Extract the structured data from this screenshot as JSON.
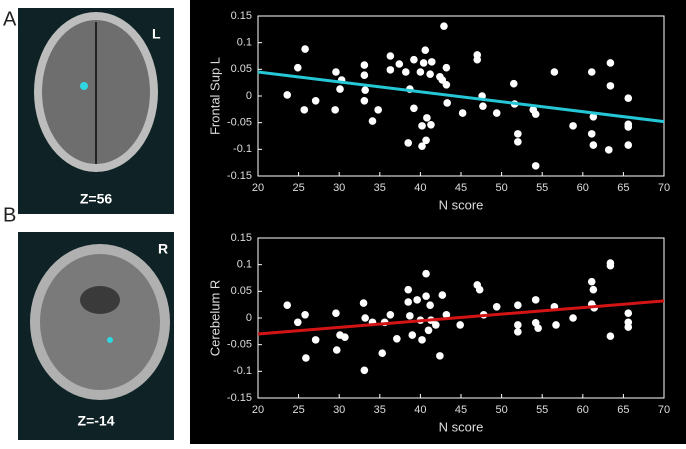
{
  "panels": [
    {
      "letter": "A",
      "side": "L",
      "slice": "Z=56"
    },
    {
      "letter": "B",
      "side": "R",
      "slice": "Z=-14"
    }
  ],
  "chart_data": [
    {
      "type": "scatter",
      "x_label": "N score",
      "y_label": "Frontal Sup L",
      "xlim": [
        20,
        70
      ],
      "xticks": [
        20,
        25,
        30,
        35,
        40,
        45,
        50,
        55,
        60,
        65,
        70
      ],
      "ylim": [
        -0.15,
        0.15
      ],
      "yticks": [
        0.15,
        0.1,
        0.05,
        0,
        -0.05,
        -0.1,
        -0.15
      ],
      "color": "#ffffff",
      "x": [
        23.6,
        24.9,
        25.8,
        25.7,
        27.1,
        29.6,
        30.1,
        30.3,
        29.5,
        33.1,
        33.1,
        33.2,
        33.1,
        34.1,
        34.8,
        36.3,
        36.3,
        37.4,
        38.2,
        38.5,
        38.7,
        39.2,
        39.2,
        40.0,
        40.2,
        40.2,
        40.4,
        40.6,
        40.8,
        40.7,
        41.2,
        41.3,
        41.4,
        42.4,
        42.7,
        42.9,
        43.2,
        43.2,
        43.3,
        45.2,
        47.0,
        47.0,
        47.6,
        47.7,
        49.4,
        51.5,
        51.6,
        52.0,
        52.0,
        53.9,
        54.2,
        54.2,
        56.5,
        58.8,
        61.1,
        61.3,
        61.1,
        61.3,
        63.4,
        63.4,
        63.2,
        65.6,
        65.6,
        65.6,
        65.6
      ],
      "values": [
        0.002,
        0.053,
        0.088,
        -0.026,
        -0.009,
        0.045,
        0.013,
        0.03,
        -0.026,
        0.058,
        0.039,
        0.011,
        -0.009,
        -0.047,
        -0.026,
        0.075,
        0.049,
        0.06,
        0.045,
        -0.088,
        0.013,
        -0.023,
        0.068,
        0.045,
        -0.094,
        -0.056,
        0.062,
        0.086,
        -0.041,
        -0.083,
        0.041,
        -0.054,
        0.064,
        0.036,
        0.03,
        0.131,
        0.053,
        0.021,
        -0.013,
        -0.032,
        0.077,
        0.068,
        0,
        -0.019,
        -0.032,
        0.023,
        -0.015,
        -0.071,
        -0.086,
        -0.026,
        -0.131,
        -0.034,
        0.045,
        -0.056,
        0.045,
        -0.039,
        -0.071,
        -0.092,
        0.062,
        0.019,
        -0.101,
        -0.004,
        -0.053,
        -0.058,
        -0.092
      ],
      "trend_line": {
        "x": [
          20,
          70
        ],
        "values": [
          0.045,
          -0.048
        ],
        "color": "#25c6d6"
      }
    },
    {
      "type": "scatter",
      "x_label": "N score",
      "y_label": "Cerebelum R",
      "xlim": [
        20,
        70
      ],
      "xticks": [
        20,
        25,
        30,
        35,
        40,
        45,
        50,
        55,
        60,
        65,
        70
      ],
      "ylim": [
        -0.15,
        0.15
      ],
      "yticks": [
        0.15,
        0.1,
        0.05,
        0,
        -0.05,
        -0.1,
        -0.15
      ],
      "color": "#ffffff",
      "x": [
        23.6,
        24.9,
        25.8,
        25.9,
        27.1,
        29.6,
        29.7,
        30.1,
        30.7,
        33.0,
        33.2,
        33.1,
        34.1,
        35.3,
        35.6,
        36.3,
        37.1,
        38.5,
        38.5,
        39.0,
        38.7,
        39.6,
        40.0,
        40.2,
        40.7,
        40.7,
        41.0,
        41.2,
        41.3,
        41.9,
        42.4,
        42.7,
        43.2,
        44.9,
        47.0,
        47.3,
        47.8,
        49.4,
        52.0,
        52.0,
        52.0,
        54.2,
        54.2,
        54.5,
        56.5,
        56.7,
        58.8,
        61.1,
        61.3,
        61.1,
        61.4,
        63.4,
        63.4,
        63.4,
        65.6,
        65.6,
        65.6
      ],
      "values": [
        0.024,
        -0.008,
        0.006,
        -0.075,
        -0.041,
        0.009,
        -0.06,
        -0.032,
        -0.036,
        0.028,
        0,
        -0.098,
        -0.008,
        -0.066,
        -0.008,
        0.006,
        -0.039,
        0.053,
        0.03,
        -0.032,
        0.004,
        0.034,
        -0.004,
        -0.041,
        0.083,
        0.041,
        -0.023,
        0.024,
        -0.004,
        -0.013,
        -0.071,
        0.043,
        0.006,
        -0.013,
        0.062,
        0.053,
        0.006,
        0.021,
        0.024,
        -0.013,
        -0.026,
        0.034,
        -0.009,
        -0.019,
        0.021,
        -0.013,
        0,
        0.068,
        0.053,
        0.026,
        0.019,
        0.103,
        0.098,
        -0.034,
        0.009,
        -0.008,
        -0.017
      ],
      "trend_line": {
        "x": [
          20,
          70
        ],
        "values": [
          -0.03,
          0.032
        ],
        "color": "#d41414"
      }
    }
  ]
}
